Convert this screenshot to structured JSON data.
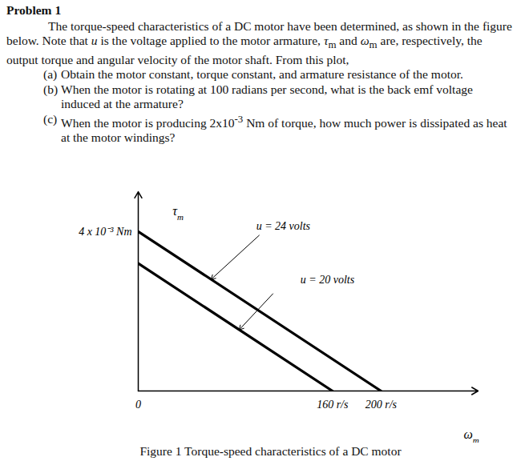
{
  "header": {
    "title": "Problem 1"
  },
  "paragraph": [
    {
      "text": "The torque-speed characteristics of a DC motor have been determined, as shown in the figure below. Note that "
    },
    {
      "text": "u",
      "style": "italic"
    },
    {
      "text": " is the voltage applied to the motor armature, "
    },
    {
      "text": "τ",
      "style": "italic"
    },
    {
      "text": "m",
      "style": "sub"
    },
    {
      "text": " and "
    },
    {
      "text": "ω",
      "style": "italic"
    },
    {
      "text": "m",
      "style": "sub"
    },
    {
      "text": " are, respectively, the output torque and angular velocity of the motor shaft. From this plot,"
    }
  ],
  "items": [
    {
      "label": "(a)",
      "runs": [
        {
          "text": "Obtain the motor constant, torque constant, and armature resistance of the motor."
        }
      ]
    },
    {
      "label": "(b)",
      "runs": [
        {
          "text": "When the motor is rotating at 100 radians per second, what is the back emf voltage induced at the armature?"
        }
      ]
    },
    {
      "label": "(c)",
      "runs": [
        {
          "text": "When the motor is producing 2x10"
        },
        {
          "text": "-3",
          "style": "sup"
        },
        {
          "text": " Nm of torque, how much power is dissipated as heat at the motor windings?"
        }
      ]
    }
  ],
  "chart_data": {
    "type": "line",
    "caption": "Figure 1 Torque-speed characteristics of a DC motor",
    "xlabel": [
      {
        "text": "ω",
        "style": "italic"
      },
      {
        "text": "m",
        "style": "sub"
      }
    ],
    "ylabel": [
      {
        "text": "τ",
        "style": "italic"
      },
      {
        "text": "m",
        "style": "sub"
      }
    ],
    "xlim": [
      0,
      280
    ],
    "ylim": [
      0,
      0.005
    ],
    "xticks": [
      {
        "value": 0,
        "label": "0"
      },
      {
        "value": 160,
        "label": "160 r/s"
      },
      {
        "value": 200,
        "label": "200 r/s"
      }
    ],
    "yticks": [
      {
        "value": 0.004,
        "label": "4 x 10⁻³ Nm"
      }
    ],
    "grid": false,
    "series": [
      {
        "name": "u = 24 volts",
        "color": "#000000",
        "line_style": "solid",
        "x": [
          0,
          200
        ],
        "values": [
          0.004,
          0
        ]
      },
      {
        "name": "u = 20 volts",
        "color": "#000000",
        "line_style": "solid",
        "x": [
          0,
          160
        ],
        "values": [
          0.0032,
          0
        ]
      }
    ]
  }
}
